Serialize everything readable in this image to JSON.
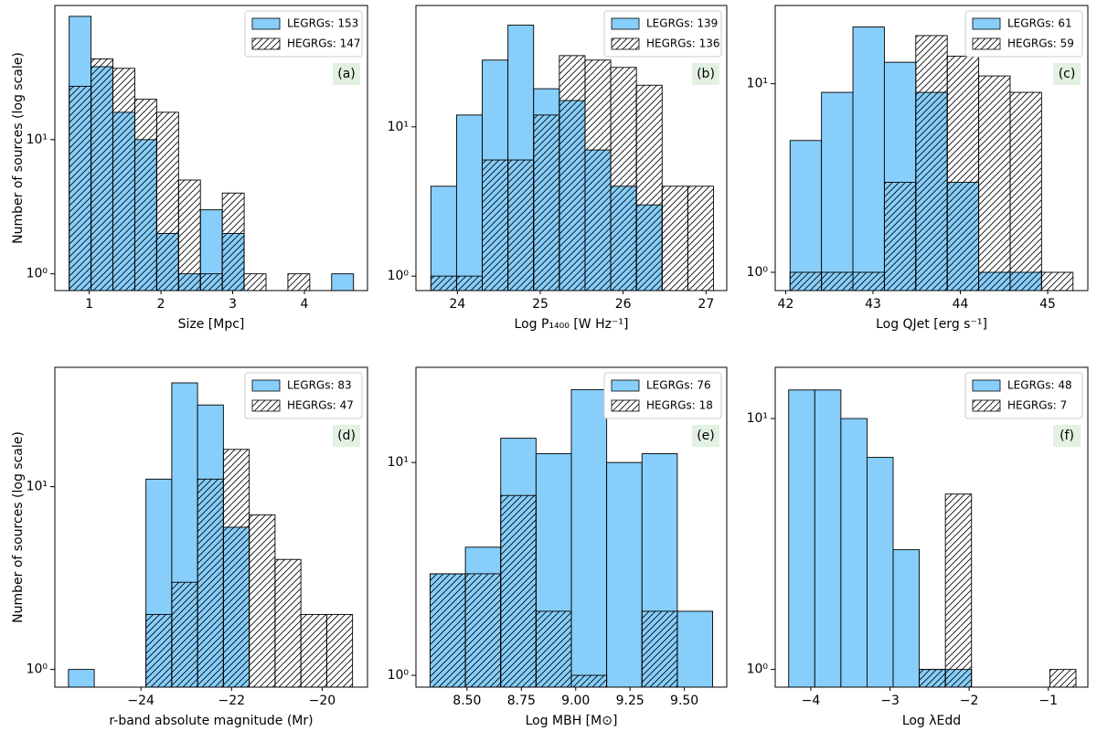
{
  "chart_data": [
    {
      "type": "histogram",
      "annotation": "(a)",
      "xlabel": "Size [Mpc]",
      "ylabel": "Number of sources (log scale)",
      "log_y": true,
      "legend": "upper right",
      "edgecolor": "#000000",
      "bins": [
        0.72,
        1.025,
        1.33,
        1.635,
        1.94,
        2.245,
        2.55,
        2.855,
        3.16,
        3.465,
        3.77,
        4.075,
        4.38,
        4.685
      ],
      "series": [
        {
          "name": "LEGRGs: 153",
          "color": "#87cefa",
          "values": [
            83,
            35,
            16,
            10,
            2,
            1,
            3,
            2,
            0,
            0,
            0,
            0,
            1
          ]
        },
        {
          "name": "HEGRGs: 147",
          "color": "none",
          "hatch": true,
          "values": [
            25,
            40,
            34,
            20,
            16,
            5,
            1,
            4,
            1,
            0,
            1,
            0,
            0
          ]
        }
      ],
      "xlim": [
        0.52,
        4.88
      ],
      "xticks": [
        1,
        2,
        3,
        4
      ],
      "ylim": [
        0.75,
        100
      ],
      "yticks": [
        {
          "value": 1,
          "label": "10⁰"
        },
        {
          "value": 10,
          "label": "10¹"
        }
      ]
    },
    {
      "type": "histogram",
      "annotation": "(b)",
      "xlabel": "Log P₁₄₀₀ [W Hz⁻¹]",
      "log_y": true,
      "legend": "upper right",
      "edgecolor": "#000000",
      "bins": [
        23.68,
        23.99,
        24.3,
        24.61,
        24.92,
        25.23,
        25.54,
        25.85,
        26.16,
        26.47,
        26.78,
        27.09
      ],
      "series": [
        {
          "name": "LEGRGs: 139",
          "color": "#87cefa",
          "values": [
            4,
            12,
            28,
            48,
            18,
            15,
            7,
            4,
            3,
            0,
            0
          ]
        },
        {
          "name": "HEGRGs: 136",
          "color": "none",
          "hatch": true,
          "values": [
            1,
            1,
            6,
            6,
            12,
            30,
            28,
            25,
            19,
            4,
            4
          ]
        }
      ],
      "xlim": [
        23.5,
        27.25
      ],
      "xticks": [
        24,
        25,
        26,
        27
      ],
      "ylim": [
        0.8,
        65
      ],
      "yticks": [
        {
          "value": 1,
          "label": "10⁰"
        },
        {
          "value": 10,
          "label": "10¹"
        }
      ]
    },
    {
      "type": "histogram",
      "annotation": "(c)",
      "xlabel": "Log QJet [erg s⁻¹]",
      "log_y": true,
      "legend": "upper right",
      "edgecolor": "#000000",
      "bins": [
        42.05,
        42.41,
        42.77,
        43.13,
        43.49,
        43.85,
        44.21,
        44.57,
        44.93,
        45.29
      ],
      "series": [
        {
          "name": "LEGRGs: 61",
          "color": "#87cefa",
          "values": [
            5,
            9,
            20,
            13,
            9,
            3,
            1,
            1,
            0
          ]
        },
        {
          "name": "HEGRGs: 59",
          "color": "none",
          "hatch": true,
          "values": [
            1,
            1,
            1,
            3,
            18,
            14,
            11,
            9,
            1
          ]
        }
      ],
      "xlim": [
        41.88,
        45.46
      ],
      "xticks": [
        42,
        43,
        44,
        45
      ],
      "ylim": [
        0.8,
        26
      ],
      "yticks": [
        {
          "value": 1,
          "label": "10⁰"
        },
        {
          "value": 10,
          "label": "10¹"
        }
      ]
    },
    {
      "type": "histogram",
      "annotation": "(d)",
      "xlabel": "r-band absolute magnitude (Mr)",
      "ylabel": "Number of sources (log scale)",
      "log_y": true,
      "legend": "upper right",
      "edgecolor": "#000000",
      "bins": [
        -25.6,
        -25.03,
        -24.46,
        -23.89,
        -23.32,
        -22.75,
        -22.18,
        -21.61,
        -21.04,
        -20.47,
        -19.9,
        -19.33
      ],
      "series": [
        {
          "name": "LEGRGs: 83",
          "color": "#87cefa",
          "values": [
            1,
            0,
            0,
            11,
            37,
            28,
            6,
            0,
            0,
            0,
            0
          ]
        },
        {
          "name": "HEGRGs: 47",
          "color": "none",
          "hatch": true,
          "values": [
            0,
            0,
            0,
            2,
            3,
            11,
            16,
            7,
            4,
            2,
            2
          ]
        }
      ],
      "xlim": [
        -25.9,
        -19.0
      ],
      "xticks": [
        {
          "value": -24,
          "label": "−24"
        },
        {
          "value": -22,
          "label": "−22"
        },
        {
          "value": -20,
          "label": "−20"
        }
      ],
      "ylim": [
        0.8,
        45
      ],
      "yticks": [
        {
          "value": 1,
          "label": "10⁰"
        },
        {
          "value": 10,
          "label": "10¹"
        }
      ]
    },
    {
      "type": "histogram",
      "annotation": "(e)",
      "xlabel": "Log MBH [M⊙]",
      "log_y": true,
      "legend": "upper right",
      "edgecolor": "#000000",
      "bins": [
        8.33,
        8.4925,
        8.655,
        8.8175,
        8.98,
        9.1425,
        9.305,
        9.4675,
        9.63
      ],
      "series": [
        {
          "name": "LEGRGs: 76",
          "color": "#87cefa",
          "values": [
            3,
            4,
            13,
            11,
            22,
            10,
            11,
            2
          ]
        },
        {
          "name": "HEGRGs: 18",
          "color": "none",
          "hatch": true,
          "values": [
            3,
            3,
            7,
            2,
            1,
            0,
            2,
            0
          ]
        }
      ],
      "xlim": [
        8.265,
        9.695
      ],
      "xticks": [
        {
          "value": 8.5,
          "label": "8.50"
        },
        8.75,
        {
          "value": 9.0,
          "label": "9.00"
        },
        9.25,
        {
          "value": 9.5,
          "label": "9.50"
        }
      ],
      "ylim": [
        0.88,
        28
      ],
      "yticks": [
        {
          "value": 1,
          "label": "10⁰"
        },
        {
          "value": 10,
          "label": "10¹"
        }
      ]
    },
    {
      "type": "histogram",
      "annotation": "(f)",
      "xlabel": "Log λEdd",
      "log_y": true,
      "legend": "upper right",
      "edgecolor": "#000000",
      "bins": [
        -4.28,
        -3.95,
        -3.62,
        -3.29,
        -2.96,
        -2.63,
        -2.3,
        -1.97,
        -1.64,
        -1.31,
        -0.98,
        -0.65
      ],
      "series": [
        {
          "name": "LEGRGs: 48",
          "color": "#87cefa",
          "values": [
            13,
            13,
            10,
            7,
            3,
            1,
            1,
            0,
            0,
            0,
            0
          ]
        },
        {
          "name": "HEGRGs: 7",
          "color": "none",
          "hatch": true,
          "values": [
            0,
            0,
            0,
            0,
            0,
            1,
            5,
            0,
            0,
            0,
            1
          ]
        }
      ],
      "xlim": [
        -4.45,
        -0.5
      ],
      "xticks": [
        {
          "value": -4,
          "label": "−4"
        },
        {
          "value": -3,
          "label": "−3"
        },
        {
          "value": -2,
          "label": "−2"
        },
        {
          "value": -1,
          "label": "−1"
        }
      ],
      "ylim": [
        0.85,
        16
      ],
      "yticks": [
        {
          "value": 1,
          "label": "10⁰"
        },
        {
          "value": 10,
          "label": "10¹"
        }
      ]
    }
  ]
}
